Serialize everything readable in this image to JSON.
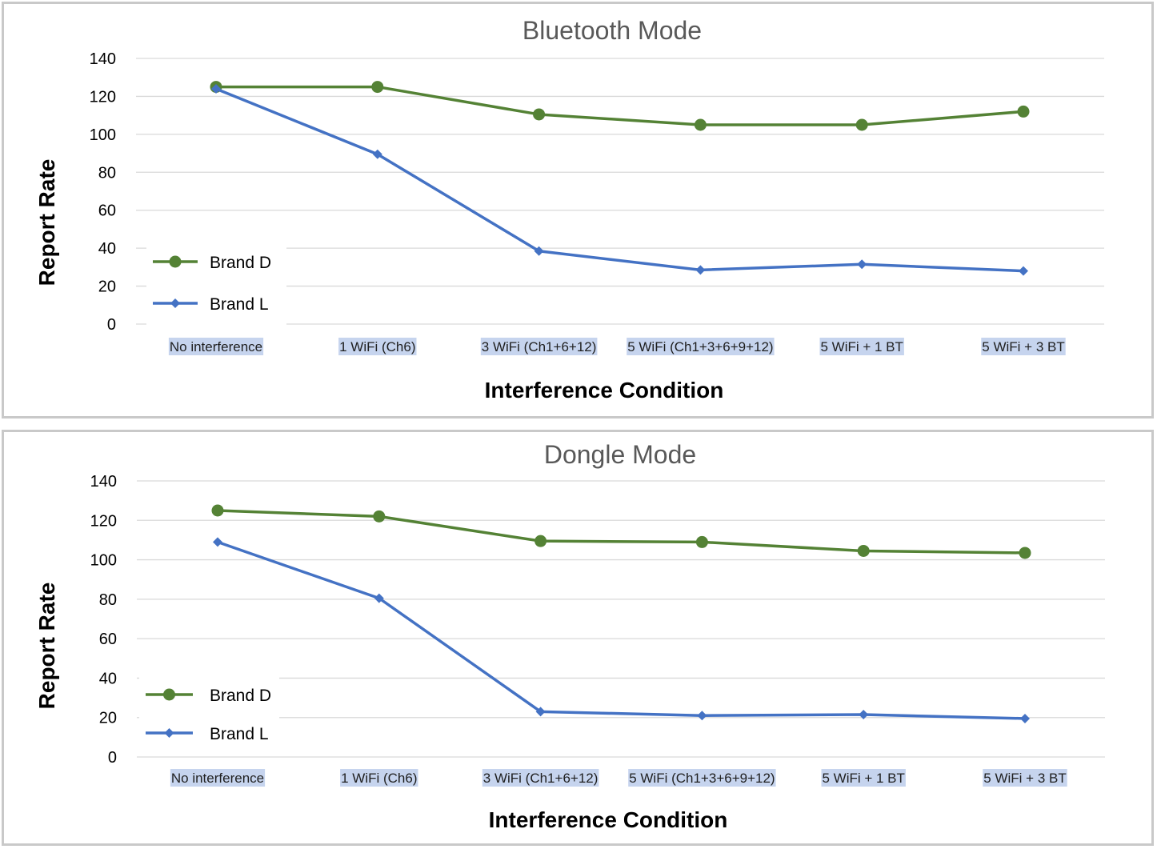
{
  "chart_data": [
    {
      "type": "line",
      "title": "Bluetooth Mode",
      "xlabel": "Interference Condition",
      "ylabel": "Report Rate",
      "ylim": [
        0,
        140
      ],
      "yticks": [
        0,
        20,
        40,
        60,
        80,
        100,
        120,
        140
      ],
      "grid": true,
      "legend_position": "left",
      "categories": [
        "No interference",
        "1 WiFi (Ch6)",
        "3 WiFi (Ch1+6+12)",
        "5 WiFi (Ch1+3+6+9+12)",
        "5 WiFi + 1 BT",
        "5 WiFi + 3 BT"
      ],
      "series": [
        {
          "name": "Brand D",
          "color": "#548235",
          "marker": "circle",
          "values": [
            125,
            125,
            110.5,
            105,
            105,
            112
          ]
        },
        {
          "name": "Brand L",
          "color": "#4472c4",
          "marker": "diamond",
          "values": [
            124,
            89.5,
            38.5,
            28.5,
            31.5,
            28
          ]
        }
      ]
    },
    {
      "type": "line",
      "title": "Dongle Mode",
      "xlabel": "Interference Condition",
      "ylabel": "Report Rate",
      "ylim": [
        0,
        140
      ],
      "yticks": [
        0,
        20,
        40,
        60,
        80,
        100,
        120,
        140
      ],
      "grid": true,
      "legend_position": "left",
      "categories": [
        "No interference",
        "1 WiFi (Ch6)",
        "3 WiFi (Ch1+6+12)",
        "5 WiFi (Ch1+3+6+9+12)",
        "5 WiFi + 1 BT",
        "5 WiFi + 3 BT"
      ],
      "series": [
        {
          "name": "Brand D",
          "color": "#548235",
          "marker": "circle",
          "values": [
            125,
            122,
            109.5,
            109,
            104.5,
            103.5
          ]
        },
        {
          "name": "Brand L",
          "color": "#4472c4",
          "marker": "diamond",
          "values": [
            109,
            80.5,
            23,
            21,
            21.5,
            19.5
          ]
        }
      ]
    }
  ]
}
